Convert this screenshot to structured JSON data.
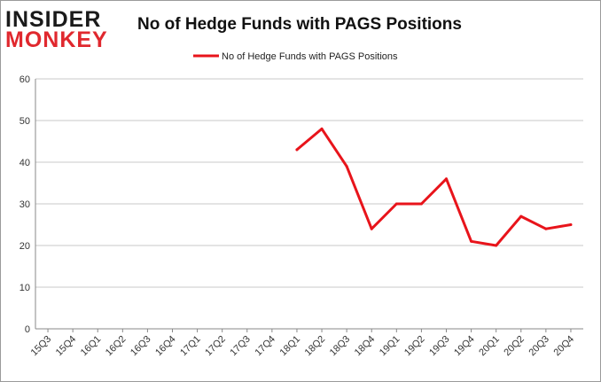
{
  "logo": {
    "line1": "INSIDER",
    "line2": "MONKEY",
    "color_dark": "#1a1a1a",
    "color_accent": "#e0282e"
  },
  "chart_data": {
    "type": "line",
    "title": "No of Hedge Funds with PAGS Positions",
    "xlabel": "",
    "ylabel": "",
    "ylim": [
      0,
      60
    ],
    "yticks": [
      0,
      10,
      20,
      30,
      40,
      50,
      60
    ],
    "grid": true,
    "legend_position": "top-center",
    "categories": [
      "15Q3",
      "15Q4",
      "16Q1",
      "16Q2",
      "16Q3",
      "16Q4",
      "17Q1",
      "17Q2",
      "17Q3",
      "17Q4",
      "18Q1",
      "18Q2",
      "18Q3",
      "18Q4",
      "19Q1",
      "19Q2",
      "19Q3",
      "19Q4",
      "20Q1",
      "20Q2",
      "20Q3",
      "20Q4"
    ],
    "series": [
      {
        "name": "No of Hedge Funds with PAGS Positions",
        "color": "#e8141b",
        "values": [
          null,
          null,
          null,
          null,
          null,
          null,
          null,
          null,
          null,
          null,
          43,
          48,
          39,
          24,
          30,
          30,
          36,
          21,
          20,
          27,
          24,
          25
        ]
      }
    ]
  }
}
